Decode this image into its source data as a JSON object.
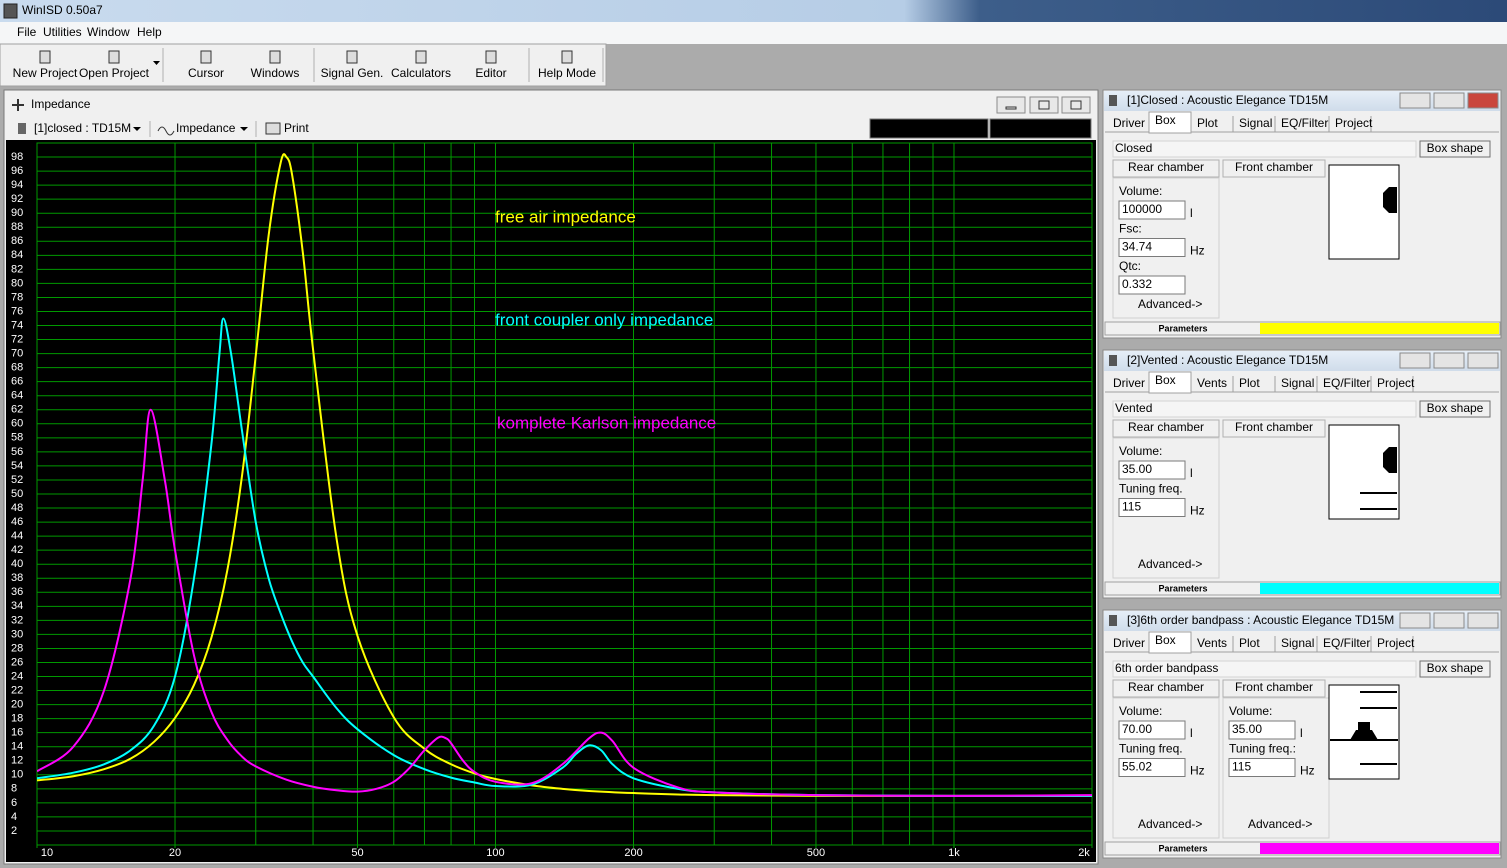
{
  "app": {
    "title": "WinISD 0.50a7",
    "menu": [
      "File",
      "Utilities",
      "Window",
      "Help"
    ],
    "toolbar": [
      "New Project",
      "Open Project",
      "Cursor",
      "Windows",
      "Signal Gen.",
      "Calculators",
      "Editor",
      "Help Mode"
    ]
  },
  "impedance_window": {
    "title": "Impedance",
    "toolbar": {
      "driver": "[1]closed : TD15M",
      "plot": "Impedance",
      "print": "Print"
    }
  },
  "chart_data": {
    "type": "line",
    "log_x": true,
    "grid": true,
    "xlim": [
      10,
      2000
    ],
    "ylim": [
      0,
      100
    ],
    "xticks": [
      10,
      20,
      50,
      100,
      200,
      500,
      {
        "value": 1000,
        "label": "1k"
      },
      {
        "value": 2000,
        "label": "2k"
      }
    ],
    "xgrid": [
      10,
      20,
      30,
      40,
      50,
      60,
      70,
      80,
      90,
      100,
      200,
      300,
      400,
      500,
      600,
      700,
      800,
      900,
      1000,
      2000
    ],
    "yticks": [
      2,
      4,
      6,
      8,
      10,
      12,
      14,
      16,
      18,
      20,
      22,
      24,
      26,
      28,
      30,
      32,
      34,
      36,
      38,
      40,
      42,
      44,
      46,
      48,
      50,
      52,
      54,
      56,
      58,
      60,
      62,
      64,
      66,
      68,
      70,
      72,
      74,
      76,
      78,
      80,
      82,
      84,
      86,
      88,
      90,
      92,
      94,
      96,
      98
    ],
    "series": [
      {
        "name": "free air impedance",
        "color": "#ffff00",
        "x": [
          10,
          12,
          14,
          16,
          18,
          20,
          22,
          24,
          26,
          28,
          30,
          32,
          34,
          35,
          36,
          38,
          40,
          45,
          50,
          60,
          70,
          80,
          90,
          100,
          120,
          140,
          160,
          200,
          250,
          300,
          500,
          1000,
          2000
        ],
        "values": [
          9.2,
          9.8,
          10.8,
          12.3,
          14.7,
          18.1,
          22.8,
          29.5,
          39.1,
          52.6,
          69.7,
          86.8,
          97.2,
          98,
          95.5,
          84.4,
          70.6,
          43.7,
          29.8,
          18.2,
          13.7,
          11.5,
          10.2,
          9.4,
          8.5,
          8.0,
          7.7,
          7.4,
          7.2,
          7.1,
          7.0,
          7.0,
          7.0
        ]
      },
      {
        "name": "front coupler only impedance",
        "color": "#00ffff",
        "x": [
          10,
          12,
          14,
          16,
          18,
          20,
          22,
          24,
          25,
          25.5,
          26.5,
          28,
          30,
          32,
          34,
          36,
          38,
          40,
          45,
          50,
          60,
          70,
          80,
          90,
          100,
          120,
          140,
          150,
          160,
          170,
          180,
          200,
          250,
          300,
          500,
          1000,
          2000
        ],
        "values": [
          9.5,
          10.3,
          11.5,
          13.5,
          17,
          24,
          38,
          57,
          70,
          75,
          70,
          59,
          46,
          38,
          33,
          29,
          26,
          24,
          19.5,
          16.5,
          12.8,
          10.8,
          9.6,
          8.9,
          8.4,
          8.6,
          11,
          13,
          14.2,
          13.5,
          11.5,
          9.5,
          8.0,
          7.5,
          7.1,
          7.0,
          7.0
        ]
      },
      {
        "name": "komplete Karlson impedance",
        "color": "#ff00ff",
        "x": [
          10,
          12,
          14,
          16,
          17,
          17.7,
          19,
          20,
          22,
          24,
          26,
          28,
          30,
          35,
          40,
          45,
          50,
          55,
          60,
          65,
          70,
          75,
          78,
          80,
          85,
          90,
          100,
          120,
          140,
          160,
          170,
          180,
          200,
          250,
          300,
          500,
          1000,
          2000
        ],
        "values": [
          10.5,
          14,
          22,
          38,
          52,
          62,
          52,
          42,
          27,
          19,
          15,
          12.6,
          11.2,
          9.3,
          8.3,
          7.8,
          7.6,
          8.0,
          9.0,
          11,
          13.5,
          15.3,
          15.2,
          14.5,
          12,
          10.4,
          9.0,
          8.8,
          11.5,
          15.2,
          16,
          14.8,
          11,
          8.2,
          7.5,
          7.1,
          7.0,
          7.1
        ]
      }
    ]
  },
  "panels": [
    {
      "title": "[1]Closed : Acoustic Elegance TD15M",
      "color": "#ffff00",
      "tabs": [
        "Driver",
        "Box",
        "Plot",
        "Signal",
        "EQ/Filter",
        "Project"
      ],
      "box_type": "Closed",
      "box_shape": "Box shape",
      "rear": "Rear chamber",
      "front": "Front chamber",
      "columns": [
        {
          "fields": [
            {
              "label": "Volume:",
              "value": "100000",
              "unit": "l"
            },
            {
              "label": "Fsc:",
              "value": "34.74",
              "unit": "Hz"
            },
            {
              "label": "Qtc:",
              "value": "0.332"
            }
          ],
          "advanced": "Advanced->"
        }
      ],
      "footer": "Parameters"
    },
    {
      "title": "[2]Vented : Acoustic Elegance TD15M",
      "color": "#00ffff",
      "tabs": [
        "Driver",
        "Box",
        "Vents",
        "Plot",
        "Signal",
        "EQ/Filter",
        "Project"
      ],
      "box_type": "Vented",
      "box_shape": "Box shape",
      "rear": "Rear chamber",
      "front": "Front chamber",
      "columns": [
        {
          "fields": [
            {
              "label": "Volume:",
              "value": "35.00",
              "unit": "l"
            },
            {
              "label": "Tuning freq.",
              "value": "115",
              "unit": "Hz"
            }
          ],
          "advanced": "Advanced->"
        }
      ],
      "footer": "Parameters"
    },
    {
      "title": "[3]6th order bandpass : Acoustic Elegance TD15M",
      "color": "#ff00ff",
      "tabs": [
        "Driver",
        "Box",
        "Vents",
        "Plot",
        "Signal",
        "EQ/Filter",
        "Project"
      ],
      "box_type": "6th order bandpass",
      "box_shape": "Box shape",
      "rear": "Rear chamber",
      "front": "Front chamber",
      "columns": [
        {
          "fields": [
            {
              "label": "Volume:",
              "value": "70.00",
              "unit": "l"
            },
            {
              "label": "Tuning freq.",
              "value": "55.02",
              "unit": "Hz"
            }
          ],
          "advanced": "Advanced->"
        },
        {
          "fields": [
            {
              "label": "Volume:",
              "value": "35.00",
              "unit": "l"
            },
            {
              "label": "Tuning freq.:",
              "value": "115",
              "unit": "Hz"
            }
          ],
          "advanced": "Advanced->"
        }
      ],
      "footer": "Parameters"
    }
  ]
}
